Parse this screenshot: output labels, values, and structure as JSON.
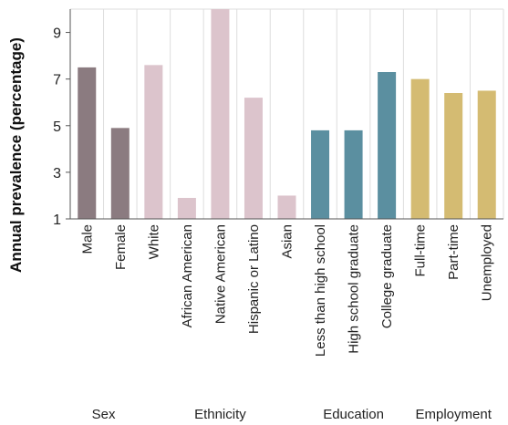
{
  "chart_data": {
    "type": "bar",
    "ylabel": "Annual prevalence (percentage)",
    "ylim": [
      1,
      10
    ],
    "yticks": [
      1,
      3,
      5,
      7,
      9
    ],
    "grid": true,
    "categories": [
      "Male",
      "Female",
      "White",
      "African American",
      "Native American",
      "Hispanic or Latino",
      "Asian",
      "Less than high school",
      "High school graduate",
      "College graduate",
      "Full-time",
      "Part-time",
      "Unemployed"
    ],
    "values": [
      7.5,
      4.9,
      7.6,
      1.9,
      10.0,
      6.2,
      2.0,
      4.8,
      4.8,
      7.3,
      7.0,
      6.4,
      6.5
    ],
    "colors": [
      "#8b7b80",
      "#8b7b80",
      "#dcc4cc",
      "#dcc4cc",
      "#dcc4cc",
      "#dcc4cc",
      "#dcc4cc",
      "#5b8fa0",
      "#5b8fa0",
      "#5b8fa0",
      "#d4bb72",
      "#d4bb72",
      "#d4bb72"
    ],
    "groups": [
      {
        "label": "Sex",
        "start": 0,
        "end": 1
      },
      {
        "label": "Ethnicity",
        "start": 2,
        "end": 6
      },
      {
        "label": "Education",
        "start": 7,
        "end": 9
      },
      {
        "label": "Employment",
        "start": 10,
        "end": 12
      }
    ]
  }
}
